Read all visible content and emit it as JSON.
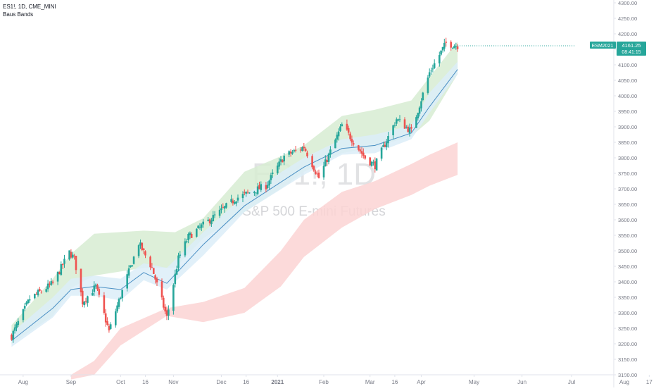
{
  "legend": {
    "symbol_line": "ES1!, 1D, CME_MINI",
    "indicator": "Baus Bands"
  },
  "watermark": {
    "symbol": "ES1!, 1D",
    "description": "S&P 500 E-mini Futures"
  },
  "price_label": {
    "ticker": "ESM2021",
    "price": "4161.25",
    "countdown": "08:41:15",
    "color": "#26a69a"
  },
  "colors": {
    "up": "#26a69a",
    "down": "#ef5350",
    "green_band": "#d7ecd2",
    "blue_band": "#dcedf8",
    "red_band": "#fcd4d4",
    "ma_line": "#4a8fc4",
    "axis_text": "#787b86",
    "grid": "#e0e3eb"
  },
  "chart_data": {
    "type": "candlestick",
    "title": "",
    "ylim": [
      3100,
      4300
    ],
    "y_ticks": [
      "3100.00",
      "3150.00",
      "3200.00",
      "3250.00",
      "3300.00",
      "3350.00",
      "3400.00",
      "3450.00",
      "3500.00",
      "3550.00",
      "3600.00",
      "3650.00",
      "3700.00",
      "3750.00",
      "3800.00",
      "3850.00",
      "3900.00",
      "3950.00",
      "4000.00",
      "4050.00",
      "4100.00",
      "4150.00",
      "4200.00",
      "4250.00",
      "4300.00"
    ],
    "x_ticks": [
      "Aug",
      "Sep",
      "Oct",
      "16",
      "Nov",
      "Dec",
      "16",
      "2021",
      "Feb",
      "Mar",
      "16",
      "Apr",
      "May",
      "Jun",
      "Jul",
      "Aug",
      "17"
    ],
    "x_tick_dates": [
      "2020-08-03",
      "2020-09-01",
      "2020-10-01",
      "2020-10-16",
      "2020-11-02",
      "2020-12-01",
      "2020-12-16",
      "2021-01-04",
      "2021-02-01",
      "2021-03-01",
      "2021-03-16",
      "2021-04-01",
      "2021-05-03",
      "2021-06-01",
      "2021-07-01",
      "2021-08-02",
      "2021-08-17"
    ],
    "anchors": [
      [
        "2020-07-27",
        3225
      ],
      [
        "2020-08-07",
        3345
      ],
      [
        "2020-08-21",
        3395
      ],
      [
        "2020-08-31",
        3495
      ],
      [
        "2020-09-03",
        3475
      ],
      [
        "2020-09-08",
        3335
      ],
      [
        "2020-09-16",
        3385
      ],
      [
        "2020-09-24",
        3240
      ],
      [
        "2020-10-01",
        3355
      ],
      [
        "2020-10-12",
        3525
      ],
      [
        "2020-10-20",
        3445
      ],
      [
        "2020-10-29",
        3285
      ],
      [
        "2020-11-05",
        3475
      ],
      [
        "2020-11-11",
        3545
      ],
      [
        "2020-11-30",
        3625
      ],
      [
        "2020-12-10",
        3670
      ],
      [
        "2020-12-28",
        3710
      ],
      [
        "2021-01-08",
        3805
      ],
      [
        "2021-01-20",
        3835
      ],
      [
        "2021-01-29",
        3735
      ],
      [
        "2021-02-12",
        3905
      ],
      [
        "2021-02-26",
        3800
      ],
      [
        "2021-03-04",
        3775
      ],
      [
        "2021-03-17",
        3925
      ],
      [
        "2021-03-26",
        3885
      ],
      [
        "2021-04-06",
        4075
      ],
      [
        "2021-04-16",
        4170
      ],
      [
        "2021-04-23",
        4161.25
      ]
    ],
    "series": [
      {
        "name": "",
        "kind": "band",
        "color": "#d7ecd2",
        "points": [
          [
            "2020-07-27",
            3200,
            3260
          ],
          [
            "2020-08-21",
            3290,
            3410
          ],
          [
            "2020-09-01",
            3380,
            3490
          ],
          [
            "2020-09-15",
            3420,
            3555
          ],
          [
            "2020-10-15",
            3445,
            3565
          ],
          [
            "2020-11-03",
            3445,
            3560
          ],
          [
            "2020-11-20",
            3540,
            3605
          ],
          [
            "2020-12-15",
            3625,
            3755
          ],
          [
            "2021-01-06",
            3700,
            3805
          ],
          [
            "2021-01-20",
            3755,
            3840
          ],
          [
            "2021-02-12",
            3815,
            3935
          ],
          [
            "2021-03-04",
            3835,
            3955
          ],
          [
            "2021-03-26",
            3870,
            3985
          ],
          [
            "2021-04-06",
            3920,
            4060
          ],
          [
            "2021-04-23",
            4070,
            4175
          ]
        ]
      },
      {
        "name": "",
        "kind": "band",
        "color": "#dcedf8",
        "points": [
          [
            "2020-07-27",
            3190,
            3235
          ],
          [
            "2020-08-21",
            3285,
            3350
          ],
          [
            "2020-09-01",
            3355,
            3410
          ],
          [
            "2020-09-15",
            3355,
            3420
          ],
          [
            "2020-10-01",
            3340,
            3410
          ],
          [
            "2020-10-15",
            3405,
            3460
          ],
          [
            "2020-10-29",
            3375,
            3445
          ],
          [
            "2020-11-20",
            3485,
            3560
          ],
          [
            "2020-12-15",
            3625,
            3680
          ],
          [
            "2021-01-20",
            3745,
            3800
          ],
          [
            "2021-02-12",
            3810,
            3860
          ],
          [
            "2021-03-04",
            3815,
            3875
          ],
          [
            "2021-03-26",
            3860,
            3905
          ],
          [
            "2021-04-06",
            3945,
            4010
          ],
          [
            "2021-04-23",
            4070,
            4110
          ]
        ]
      },
      {
        "name": "",
        "kind": "band",
        "color": "#fcd4d4",
        "points": [
          [
            "2020-09-01",
            3085,
            3100
          ],
          [
            "2020-09-15",
            3100,
            3145
          ],
          [
            "2020-10-01",
            3195,
            3250
          ],
          [
            "2020-10-29",
            3290,
            3315
          ],
          [
            "2020-11-20",
            3270,
            3335
          ],
          [
            "2020-12-15",
            3300,
            3380
          ],
          [
            "2021-01-06",
            3385,
            3500
          ],
          [
            "2021-01-20",
            3480,
            3600
          ],
          [
            "2021-02-12",
            3575,
            3690
          ],
          [
            "2021-03-04",
            3635,
            3725
          ],
          [
            "2021-03-26",
            3680,
            3780
          ],
          [
            "2021-04-06",
            3710,
            3810
          ],
          [
            "2021-04-23",
            3745,
            3850
          ]
        ]
      },
      {
        "name": "",
        "kind": "line",
        "color": "#4a8fc4",
        "points": [
          [
            "2020-07-27",
            3210
          ],
          [
            "2020-08-21",
            3315
          ],
          [
            "2020-09-01",
            3375
          ],
          [
            "2020-09-15",
            3385
          ],
          [
            "2020-10-01",
            3375
          ],
          [
            "2020-10-15",
            3430
          ],
          [
            "2020-10-29",
            3395
          ],
          [
            "2020-11-20",
            3520
          ],
          [
            "2020-12-15",
            3645
          ],
          [
            "2021-01-20",
            3770
          ],
          [
            "2021-02-12",
            3830
          ],
          [
            "2021-03-04",
            3840
          ],
          [
            "2021-03-26",
            3880
          ],
          [
            "2021-04-06",
            3965
          ],
          [
            "2021-04-23",
            4085
          ]
        ]
      }
    ]
  }
}
